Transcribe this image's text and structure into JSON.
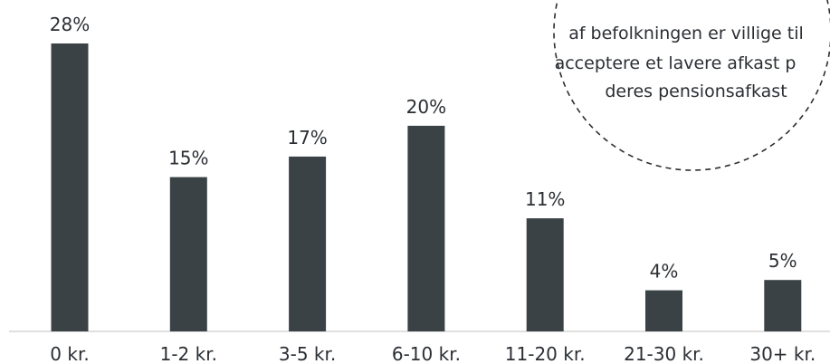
{
  "colors": {
    "bar": "#3b4246",
    "text": "#2b2f33",
    "baseline": "#d6d6d6",
    "callout_border": "#2b2f33"
  },
  "callout": {
    "lines": [
      "af befolkningen er villige til",
      "acceptere et lavere afkast p",
      "deres pensionsafkast"
    ]
  },
  "chart_data": {
    "type": "bar",
    "categories": [
      "0 kr.",
      "1-2 kr.",
      "3-5 kr.",
      "6-10 kr.",
      "11-20 kr.",
      "21-30 kr.",
      "30+ kr."
    ],
    "values": [
      28,
      15,
      17,
      20,
      11,
      4,
      5
    ],
    "value_labels": [
      "28%",
      "15%",
      "17%",
      "20%",
      "11%",
      "4%",
      "5%"
    ],
    "unit": "%",
    "ylim": [
      0,
      28
    ],
    "grid": false,
    "legend": "none"
  }
}
